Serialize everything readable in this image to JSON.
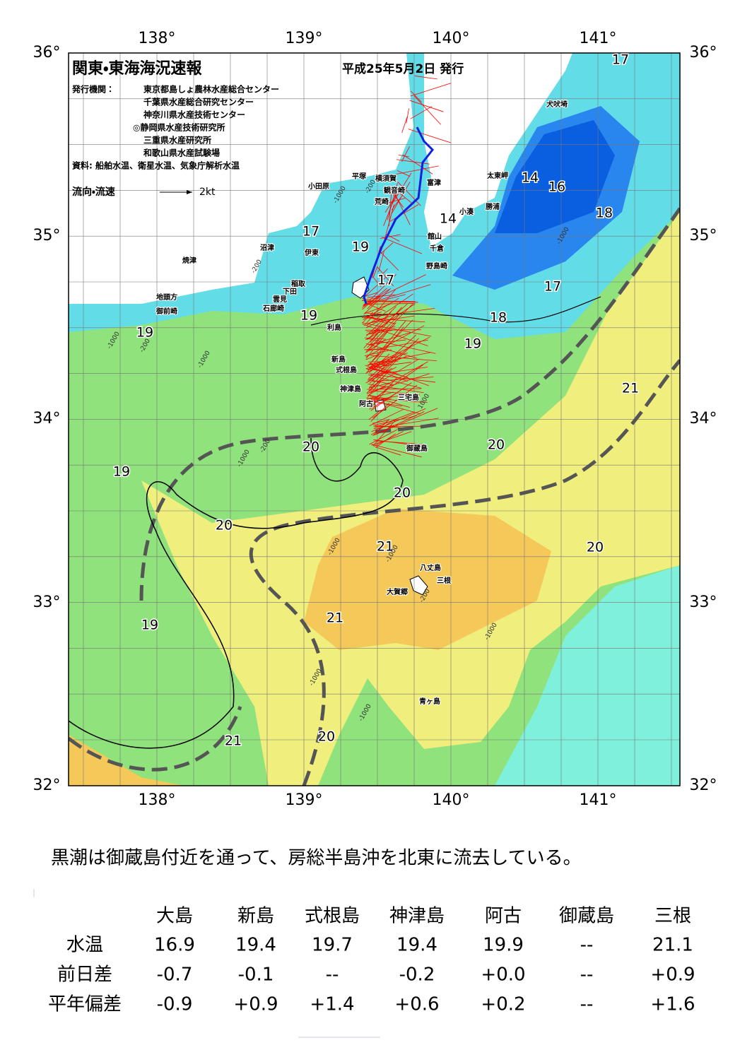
{
  "header": {
    "title": "関東・東海海況速報",
    "date": "平成25年5月2日 発行"
  },
  "publishers": {
    "label": "発行機関：",
    "items": [
      "東京都島しょ農林水産総合センター",
      "千葉県水産総合研究センター",
      "神奈川県水産技術センター",
      "◎静岡県水産技術研究所",
      "三重県水産研究所",
      "和歌山県水産試験場"
    ]
  },
  "source": "資料: 船舶水温、衛星水温、気象庁解析水温",
  "legend": {
    "label": "流向・流速",
    "scale": "2kt"
  },
  "map": {
    "longitudes": [
      "138°",
      "139°",
      "140°",
      "141°"
    ],
    "latitudes": [
      "36°",
      "35°",
      "34°",
      "33°",
      "32°"
    ],
    "temperature_labels": [
      "17",
      "14",
      "16",
      "18",
      "14",
      "17",
      "19",
      "17",
      "17",
      "18",
      "19",
      "19",
      "19",
      "21",
      "20",
      "20",
      "19",
      "20",
      "20",
      "21",
      "20",
      "21",
      "19",
      "20",
      "21"
    ],
    "depth_labels": [
      "-200",
      "-1000",
      "-200",
      "-1000",
      "-1000",
      "-200",
      "-1000",
      "-200",
      "-1000",
      "-1000",
      "-1000",
      "-200",
      "-1000",
      "-1000",
      "-1000",
      "1000"
    ],
    "places": [
      "犬吠埼",
      "太東岬",
      "勝浦",
      "小湊",
      "富津",
      "横須賀",
      "観音崎",
      "平塚",
      "小田原",
      "荒崎",
      "館山",
      "千倉",
      "野島崎",
      "沼津",
      "伊東",
      "焼津",
      "稲取",
      "下田",
      "雲見",
      "石廊崎",
      "地頭方",
      "御前崎",
      "利島",
      "新島",
      "式根島",
      "神津島",
      "阿古",
      "三宅島",
      "御蔵島",
      "八丈島",
      "三根",
      "大賀郷",
      "青ヶ島"
    ]
  },
  "summary": "黒潮は御蔵島付近を通って、房総半島沖を北東に流去している。",
  "table": {
    "columns": [
      "大島",
      "新島",
      "式根島",
      "神津島",
      "阿古",
      "御蔵島",
      "三根"
    ],
    "rows": [
      {
        "label": "水温",
        "values": [
          "16.9",
          "19.4",
          "19.7",
          "19.4",
          "19.9",
          "--",
          "21.1"
        ]
      },
      {
        "label": "前日差",
        "values": [
          "-0.7",
          "-0.1",
          "--",
          "-0.2",
          "+0.0",
          "--",
          "+0.9"
        ]
      },
      {
        "label": "平年偏差",
        "values": [
          "-0.9",
          "+0.9",
          "+1.4",
          "+0.6",
          "+0.2",
          "--",
          "+1.6"
        ]
      }
    ]
  }
}
